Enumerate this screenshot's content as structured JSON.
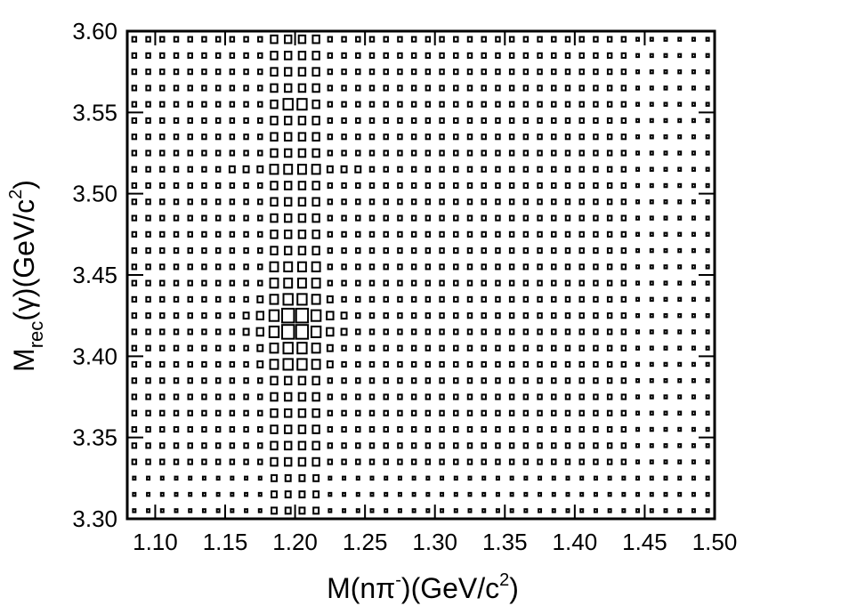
{
  "chart_data": {
    "type": "box2d",
    "xlabel": [
      "M(nπ",
      "-",
      ")(GeV/c",
      "2",
      ")"
    ],
    "ylabel": [
      "M",
      "rec",
      "(γ)(GeV/c",
      "2",
      ")"
    ],
    "xlim": [
      1.08,
      1.5
    ],
    "ylim": [
      3.3,
      3.6
    ],
    "xticks": [
      {
        "value": 1.1,
        "label": "1.10"
      },
      1.15,
      {
        "value": 1.2,
        "label": "1.20"
      },
      1.25,
      {
        "value": 1.3,
        "label": "1.30"
      },
      1.35,
      {
        "value": 1.4,
        "label": "1.40"
      },
      1.45,
      {
        "value": 1.5,
        "label": "1.50"
      }
    ],
    "yticks": [
      {
        "value": 3.3,
        "label": "3.30"
      },
      3.35,
      {
        "value": 3.4,
        "label": "3.40"
      },
      3.45,
      {
        "value": 3.5,
        "label": "3.50"
      },
      3.55,
      {
        "value": 3.6,
        "label": "3.60"
      }
    ],
    "color": "#000000",
    "z": [
      [
        2,
        2,
        2,
        2,
        2,
        2,
        2,
        2,
        2,
        2,
        4,
        4,
        4,
        4,
        2,
        2,
        2,
        2,
        2,
        2,
        2,
        2,
        2,
        2,
        2,
        2,
        2,
        2,
        2,
        2,
        2,
        2,
        2,
        2,
        2,
        2,
        2,
        2,
        2,
        2,
        2,
        2
      ],
      [
        2,
        2,
        2,
        2,
        2,
        2,
        2,
        2,
        2,
        2,
        4,
        4,
        4,
        4,
        2,
        2,
        2,
        2,
        2,
        2,
        2,
        2,
        2,
        2,
        2,
        2,
        2,
        2,
        2,
        2,
        2,
        2,
        2,
        2,
        2,
        2,
        2,
        2,
        2,
        2,
        2,
        2
      ],
      [
        2,
        2,
        2,
        2,
        2,
        2,
        2,
        2,
        2,
        2,
        4,
        4,
        4,
        4,
        2,
        2,
        2,
        2,
        2,
        2,
        2,
        2,
        2,
        2,
        2,
        2,
        2,
        2,
        2,
        2,
        2,
        2,
        2,
        2,
        2,
        2,
        2,
        2,
        2,
        2,
        2,
        2
      ],
      [
        3,
        3,
        3,
        3,
        3,
        3,
        3,
        3,
        3,
        3,
        5,
        5,
        5,
        5,
        3,
        3,
        3,
        3,
        3,
        3,
        3,
        3,
        3,
        3,
        3,
        3,
        3,
        3,
        3,
        3,
        3,
        3,
        3,
        3,
        3,
        3,
        2,
        2,
        2,
        2,
        2,
        2
      ],
      [
        3,
        3,
        3,
        3,
        3,
        3,
        3,
        3,
        3,
        3,
        5,
        5,
        5,
        5,
        3,
        3,
        3,
        3,
        3,
        3,
        3,
        3,
        3,
        3,
        3,
        3,
        3,
        3,
        3,
        3,
        3,
        3,
        3,
        3,
        3,
        3,
        2,
        2,
        2,
        2,
        2,
        2
      ],
      [
        3,
        3,
        3,
        3,
        3,
        3,
        3,
        3,
        3,
        3,
        5,
        5,
        5,
        5,
        3,
        3,
        3,
        3,
        3,
        3,
        3,
        3,
        3,
        3,
        3,
        3,
        3,
        3,
        3,
        3,
        3,
        3,
        3,
        3,
        3,
        3,
        2,
        2,
        2,
        2,
        2,
        2
      ],
      [
        3,
        3,
        3,
        3,
        3,
        3,
        3,
        3,
        3,
        3,
        5,
        5,
        5,
        5,
        3,
        3,
        3,
        3,
        3,
        3,
        3,
        3,
        3,
        3,
        3,
        3,
        3,
        3,
        3,
        3,
        3,
        3,
        3,
        3,
        3,
        3,
        2,
        2,
        2,
        2,
        2,
        2
      ],
      [
        3,
        3,
        3,
        3,
        3,
        3,
        3,
        3,
        3,
        3,
        5,
        5,
        5,
        5,
        3,
        3,
        3,
        3,
        3,
        3,
        3,
        3,
        3,
        3,
        3,
        3,
        3,
        3,
        3,
        3,
        3,
        3,
        3,
        3,
        3,
        3,
        2,
        2,
        2,
        2,
        2,
        2
      ],
      [
        3,
        3,
        3,
        3,
        3,
        3,
        3,
        3,
        3,
        3,
        5,
        5,
        5,
        5,
        3,
        3,
        3,
        3,
        3,
        3,
        3,
        3,
        3,
        3,
        3,
        3,
        3,
        3,
        3,
        3,
        3,
        3,
        3,
        3,
        3,
        3,
        2,
        2,
        2,
        2,
        2,
        2
      ],
      [
        3,
        3,
        3,
        3,
        3,
        3,
        3,
        3,
        3,
        4,
        6,
        7,
        7,
        6,
        4,
        3,
        3,
        3,
        3,
        3,
        3,
        3,
        3,
        3,
        3,
        3,
        3,
        3,
        3,
        3,
        3,
        3,
        3,
        3,
        3,
        3,
        2,
        2,
        2,
        2,
        2,
        2
      ],
      [
        3,
        3,
        3,
        3,
        3,
        3,
        3,
        3,
        3,
        4,
        6,
        7,
        7,
        6,
        4,
        3,
        3,
        3,
        3,
        3,
        3,
        3,
        3,
        3,
        3,
        3,
        3,
        3,
        3,
        3,
        3,
        3,
        3,
        3,
        3,
        3,
        2,
        2,
        2,
        2,
        2,
        2
      ],
      [
        3,
        3,
        3,
        3,
        3,
        3,
        3,
        3,
        4,
        5,
        7,
        9,
        9,
        7,
        5,
        4,
        3,
        3,
        3,
        3,
        3,
        3,
        3,
        3,
        3,
        3,
        3,
        3,
        3,
        3,
        3,
        3,
        3,
        3,
        3,
        3,
        2,
        2,
        2,
        2,
        2,
        2
      ],
      [
        3,
        3,
        3,
        3,
        3,
        3,
        3,
        3,
        4,
        5,
        7,
        9,
        9,
        7,
        5,
        4,
        3,
        3,
        3,
        3,
        3,
        3,
        3,
        3,
        3,
        3,
        3,
        3,
        3,
        3,
        3,
        3,
        3,
        3,
        3,
        3,
        2,
        2,
        2,
        2,
        2,
        2
      ],
      [
        3,
        3,
        3,
        3,
        3,
        3,
        3,
        3,
        3,
        4,
        6,
        7,
        7,
        6,
        4,
        3,
        3,
        3,
        3,
        3,
        3,
        3,
        3,
        3,
        3,
        3,
        3,
        3,
        3,
        3,
        3,
        3,
        3,
        3,
        3,
        3,
        2,
        2,
        2,
        2,
        2,
        2
      ],
      [
        3,
        3,
        3,
        3,
        3,
        3,
        3,
        3,
        3,
        3,
        6,
        6,
        6,
        6,
        3,
        3,
        3,
        3,
        3,
        3,
        3,
        3,
        3,
        3,
        3,
        3,
        3,
        3,
        3,
        3,
        3,
        3,
        3,
        3,
        3,
        3,
        2,
        2,
        2,
        2,
        2,
        2
      ],
      [
        3,
        3,
        3,
        3,
        3,
        3,
        3,
        3,
        3,
        3,
        6,
        6,
        6,
        6,
        3,
        3,
        3,
        3,
        3,
        3,
        3,
        3,
        3,
        3,
        3,
        3,
        3,
        3,
        3,
        3,
        3,
        3,
        3,
        3,
        3,
        3,
        2,
        2,
        2,
        2,
        2,
        2
      ],
      [
        3,
        3,
        3,
        3,
        3,
        3,
        3,
        3,
        3,
        3,
        5,
        5,
        5,
        5,
        3,
        3,
        3,
        3,
        3,
        3,
        3,
        3,
        3,
        3,
        3,
        3,
        3,
        3,
        3,
        3,
        3,
        3,
        3,
        3,
        3,
        3,
        2,
        2,
        2,
        2,
        2,
        2
      ],
      [
        3,
        3,
        3,
        3,
        3,
        3,
        3,
        3,
        3,
        3,
        5,
        5,
        5,
        5,
        3,
        3,
        3,
        3,
        3,
        3,
        3,
        3,
        3,
        3,
        3,
        3,
        3,
        3,
        3,
        3,
        3,
        3,
        3,
        3,
        3,
        3,
        2,
        2,
        2,
        2,
        2,
        2
      ],
      [
        3,
        3,
        3,
        3,
        3,
        3,
        3,
        3,
        3,
        3,
        5,
        5,
        5,
        5,
        3,
        3,
        3,
        3,
        3,
        3,
        3,
        3,
        3,
        3,
        3,
        3,
        3,
        3,
        3,
        3,
        3,
        3,
        3,
        3,
        3,
        3,
        2,
        2,
        2,
        2,
        2,
        2
      ],
      [
        3,
        3,
        3,
        3,
        3,
        3,
        3,
        3,
        3,
        3,
        5,
        5,
        5,
        5,
        3,
        3,
        3,
        3,
        3,
        3,
        3,
        3,
        3,
        3,
        3,
        3,
        3,
        3,
        3,
        3,
        3,
        3,
        3,
        3,
        3,
        3,
        2,
        2,
        2,
        2,
        2,
        2
      ],
      [
        3,
        3,
        3,
        3,
        3,
        3,
        3,
        3,
        3,
        3,
        5,
        5,
        5,
        5,
        3,
        3,
        3,
        3,
        3,
        3,
        3,
        3,
        3,
        3,
        3,
        3,
        3,
        3,
        3,
        3,
        3,
        3,
        3,
        3,
        3,
        3,
        2,
        2,
        2,
        2,
        2,
        2
      ],
      [
        3,
        3,
        3,
        3,
        3,
        3,
        3,
        4,
        4,
        4,
        6,
        6,
        6,
        6,
        4,
        4,
        4,
        3,
        3,
        3,
        3,
        3,
        3,
        3,
        3,
        3,
        3,
        3,
        3,
        3,
        3,
        3,
        3,
        3,
        3,
        3,
        2,
        2,
        2,
        2,
        2,
        2
      ],
      [
        3,
        3,
        3,
        3,
        3,
        3,
        3,
        3,
        3,
        3,
        5,
        5,
        5,
        5,
        3,
        3,
        3,
        3,
        3,
        3,
        3,
        3,
        3,
        3,
        3,
        3,
        3,
        3,
        3,
        3,
        3,
        3,
        3,
        3,
        3,
        3,
        2,
        2,
        2,
        2,
        2,
        2
      ],
      [
        3,
        3,
        3,
        3,
        3,
        3,
        3,
        3,
        3,
        3,
        5,
        5,
        5,
        5,
        3,
        3,
        3,
        3,
        3,
        3,
        3,
        3,
        3,
        3,
        3,
        3,
        3,
        3,
        3,
        3,
        3,
        3,
        3,
        3,
        3,
        3,
        2,
        2,
        2,
        2,
        2,
        2
      ],
      [
        3,
        3,
        3,
        3,
        3,
        3,
        3,
        3,
        3,
        3,
        5,
        5,
        5,
        5,
        3,
        3,
        3,
        3,
        3,
        3,
        3,
        3,
        3,
        3,
        3,
        3,
        3,
        3,
        3,
        3,
        3,
        3,
        3,
        3,
        3,
        3,
        2,
        2,
        2,
        2,
        2,
        2
      ],
      [
        3,
        3,
        3,
        3,
        3,
        3,
        3,
        3,
        3,
        3,
        5,
        7,
        7,
        5,
        3,
        3,
        3,
        3,
        3,
        3,
        3,
        3,
        3,
        3,
        3,
        3,
        3,
        3,
        3,
        3,
        3,
        3,
        3,
        3,
        3,
        3,
        2,
        2,
        2,
        2,
        2,
        2
      ],
      [
        3,
        3,
        3,
        3,
        3,
        3,
        3,
        3,
        3,
        3,
        5,
        5,
        5,
        5,
        3,
        3,
        3,
        3,
        3,
        3,
        3,
        3,
        3,
        3,
        3,
        3,
        3,
        3,
        3,
        3,
        3,
        3,
        3,
        3,
        3,
        3,
        2,
        2,
        2,
        2,
        2,
        2
      ],
      [
        3,
        3,
        3,
        3,
        3,
        3,
        3,
        3,
        3,
        3,
        5,
        5,
        5,
        5,
        3,
        3,
        3,
        3,
        3,
        3,
        3,
        3,
        3,
        3,
        3,
        3,
        3,
        3,
        3,
        3,
        3,
        3,
        3,
        3,
        3,
        3,
        2,
        2,
        2,
        2,
        2,
        2
      ],
      [
        3,
        3,
        3,
        3,
        3,
        3,
        3,
        3,
        3,
        3,
        5,
        5,
        5,
        5,
        3,
        3,
        3,
        3,
        3,
        3,
        3,
        3,
        3,
        3,
        3,
        3,
        3,
        3,
        3,
        3,
        3,
        3,
        3,
        3,
        3,
        3,
        2,
        2,
        2,
        2,
        2,
        2
      ],
      [
        3,
        3,
        3,
        3,
        3,
        3,
        3,
        3,
        3,
        3,
        5,
        5,
        5,
        5,
        3,
        3,
        3,
        3,
        3,
        3,
        3,
        3,
        3,
        3,
        3,
        3,
        3,
        3,
        3,
        3,
        3,
        3,
        3,
        3,
        3,
        3,
        2,
        2,
        2,
        2,
        2,
        2
      ]
    ]
  }
}
